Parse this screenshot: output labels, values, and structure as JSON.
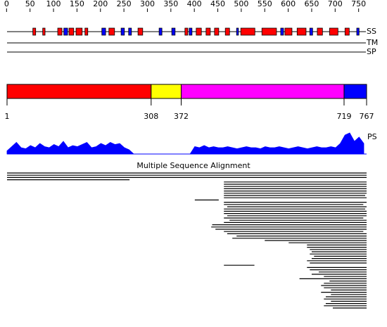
{
  "ruler": {
    "ticks": [
      0,
      50,
      100,
      150,
      200,
      250,
      300,
      350,
      400,
      450,
      500,
      550,
      600,
      650,
      700,
      750
    ]
  },
  "tracks": {
    "ss": "SS",
    "tm": "TM",
    "sp": "SP",
    "ps": "PS"
  },
  "ss_elements": {
    "helix": {
      "color": "#ff0000",
      "ranges": [
        [
          56,
          62
        ],
        [
          77,
          82
        ],
        [
          109,
          118
        ],
        [
          133,
          143
        ],
        [
          148,
          161
        ],
        [
          167,
          173
        ],
        [
          218,
          230
        ],
        [
          280,
          290
        ],
        [
          380,
          386
        ],
        [
          404,
          415
        ],
        [
          425,
          434
        ],
        [
          443,
          452
        ],
        [
          466,
          475
        ],
        [
          499,
          529
        ],
        [
          544,
          575
        ],
        [
          593,
          608
        ],
        [
          619,
          638
        ],
        [
          662,
          673
        ],
        [
          688,
          706
        ],
        [
          721,
          730
        ]
      ]
    },
    "strand": {
      "color": "#0000ff",
      "ranges": [
        [
          122,
          130
        ],
        [
          203,
          211
        ],
        [
          244,
          251
        ],
        [
          260,
          266
        ],
        [
          325,
          331
        ],
        [
          352,
          359
        ],
        [
          389,
          395
        ],
        [
          490,
          494
        ],
        [
          584,
          590
        ],
        [
          646,
          652
        ],
        [
          746,
          751
        ]
      ]
    }
  },
  "domains": {
    "boundaries": [
      1,
      308,
      372,
      719,
      767
    ],
    "colors": [
      "#ff0000",
      "#ffff00",
      "#ff00ff",
      "#0000ff"
    ]
  },
  "ps_profile": {
    "color": "#0000ff",
    "x": [
      1,
      11,
      21,
      31,
      41,
      51,
      61,
      71,
      81,
      91,
      101,
      111,
      121,
      131,
      141,
      151,
      161,
      171,
      181,
      191,
      201,
      211,
      221,
      231,
      241,
      251,
      261,
      271,
      281,
      291,
      301,
      311,
      321,
      331,
      341,
      351,
      361,
      371,
      381,
      391,
      401,
      411,
      421,
      431,
      441,
      451,
      461,
      471,
      481,
      491,
      501,
      511,
      521,
      531,
      541,
      551,
      561,
      571,
      581,
      591,
      601,
      611,
      621,
      631,
      641,
      651,
      661,
      671,
      681,
      691,
      701,
      711,
      721,
      731,
      741,
      751,
      761
    ],
    "values": [
      0.15,
      0.35,
      0.55,
      0.3,
      0.25,
      0.4,
      0.3,
      0.5,
      0.35,
      0.3,
      0.45,
      0.35,
      0.6,
      0.3,
      0.4,
      0.35,
      0.45,
      0.55,
      0.3,
      0.35,
      0.5,
      0.4,
      0.55,
      0.45,
      0.5,
      0.3,
      0.2,
      0,
      0,
      0,
      0,
      0,
      0,
      0,
      0,
      0,
      0,
      0,
      0,
      0,
      0.35,
      0.3,
      0.4,
      0.3,
      0.35,
      0.3,
      0.3,
      0.35,
      0.3,
      0.25,
      0.3,
      0.35,
      0.3,
      0.3,
      0.25,
      0.35,
      0.3,
      0.3,
      0.35,
      0.3,
      0.25,
      0.3,
      0.35,
      0.3,
      0.25,
      0.3,
      0.35,
      0.3,
      0.3,
      0.35,
      0.3,
      0.5,
      0.9,
      1.0,
      0.6,
      0.8,
      0.5
    ]
  },
  "msa": {
    "title": "Multiple Sequence Alignment",
    "rows": [
      [
        1,
        767
      ],
      [
        1,
        767
      ],
      [
        1,
        767
      ],
      [
        1,
        262
      ],
      [
        463,
        767
      ],
      [
        463,
        767
      ],
      [
        463,
        767
      ],
      [
        463,
        767
      ],
      [
        463,
        767
      ],
      [
        463,
        767
      ],
      [
        463,
        764
      ],
      [
        463,
        767
      ],
      [
        401,
        452
      ],
      [
        463,
        767
      ],
      [
        463,
        760
      ],
      [
        470,
        767
      ],
      [
        463,
        764
      ],
      [
        463,
        767
      ],
      [
        463,
        767
      ],
      [
        470,
        767
      ],
      [
        463,
        760
      ],
      [
        475,
        767
      ],
      [
        463,
        767
      ],
      [
        438,
        767
      ],
      [
        436,
        767
      ],
      [
        445,
        767
      ],
      [
        463,
        760
      ],
      [
        470,
        767
      ],
      [
        490,
        767
      ],
      [
        481,
        767
      ],
      [
        550,
        767
      ],
      [
        601,
        767
      ],
      [
        640,
        767
      ],
      [
        640,
        767
      ],
      [
        646,
        767
      ],
      [
        650,
        767
      ],
      [
        646,
        767
      ],
      [
        655,
        767
      ],
      [
        650,
        767
      ],
      [
        640,
        767
      ],
      [
        646,
        767
      ],
      [
        463,
        528
      ],
      [
        640,
        767
      ],
      [
        646,
        767
      ],
      [
        665,
        767
      ],
      [
        650,
        767
      ],
      [
        676,
        767
      ],
      [
        624,
        767
      ],
      [
        688,
        767
      ],
      [
        676,
        767
      ],
      [
        670,
        767
      ],
      [
        676,
        767
      ],
      [
        691,
        767
      ],
      [
        670,
        767
      ],
      [
        691,
        767
      ],
      [
        680,
        767
      ],
      [
        676,
        767
      ],
      [
        691,
        767
      ],
      [
        680,
        767
      ],
      [
        676,
        767
      ],
      [
        695,
        767
      ]
    ]
  }
}
